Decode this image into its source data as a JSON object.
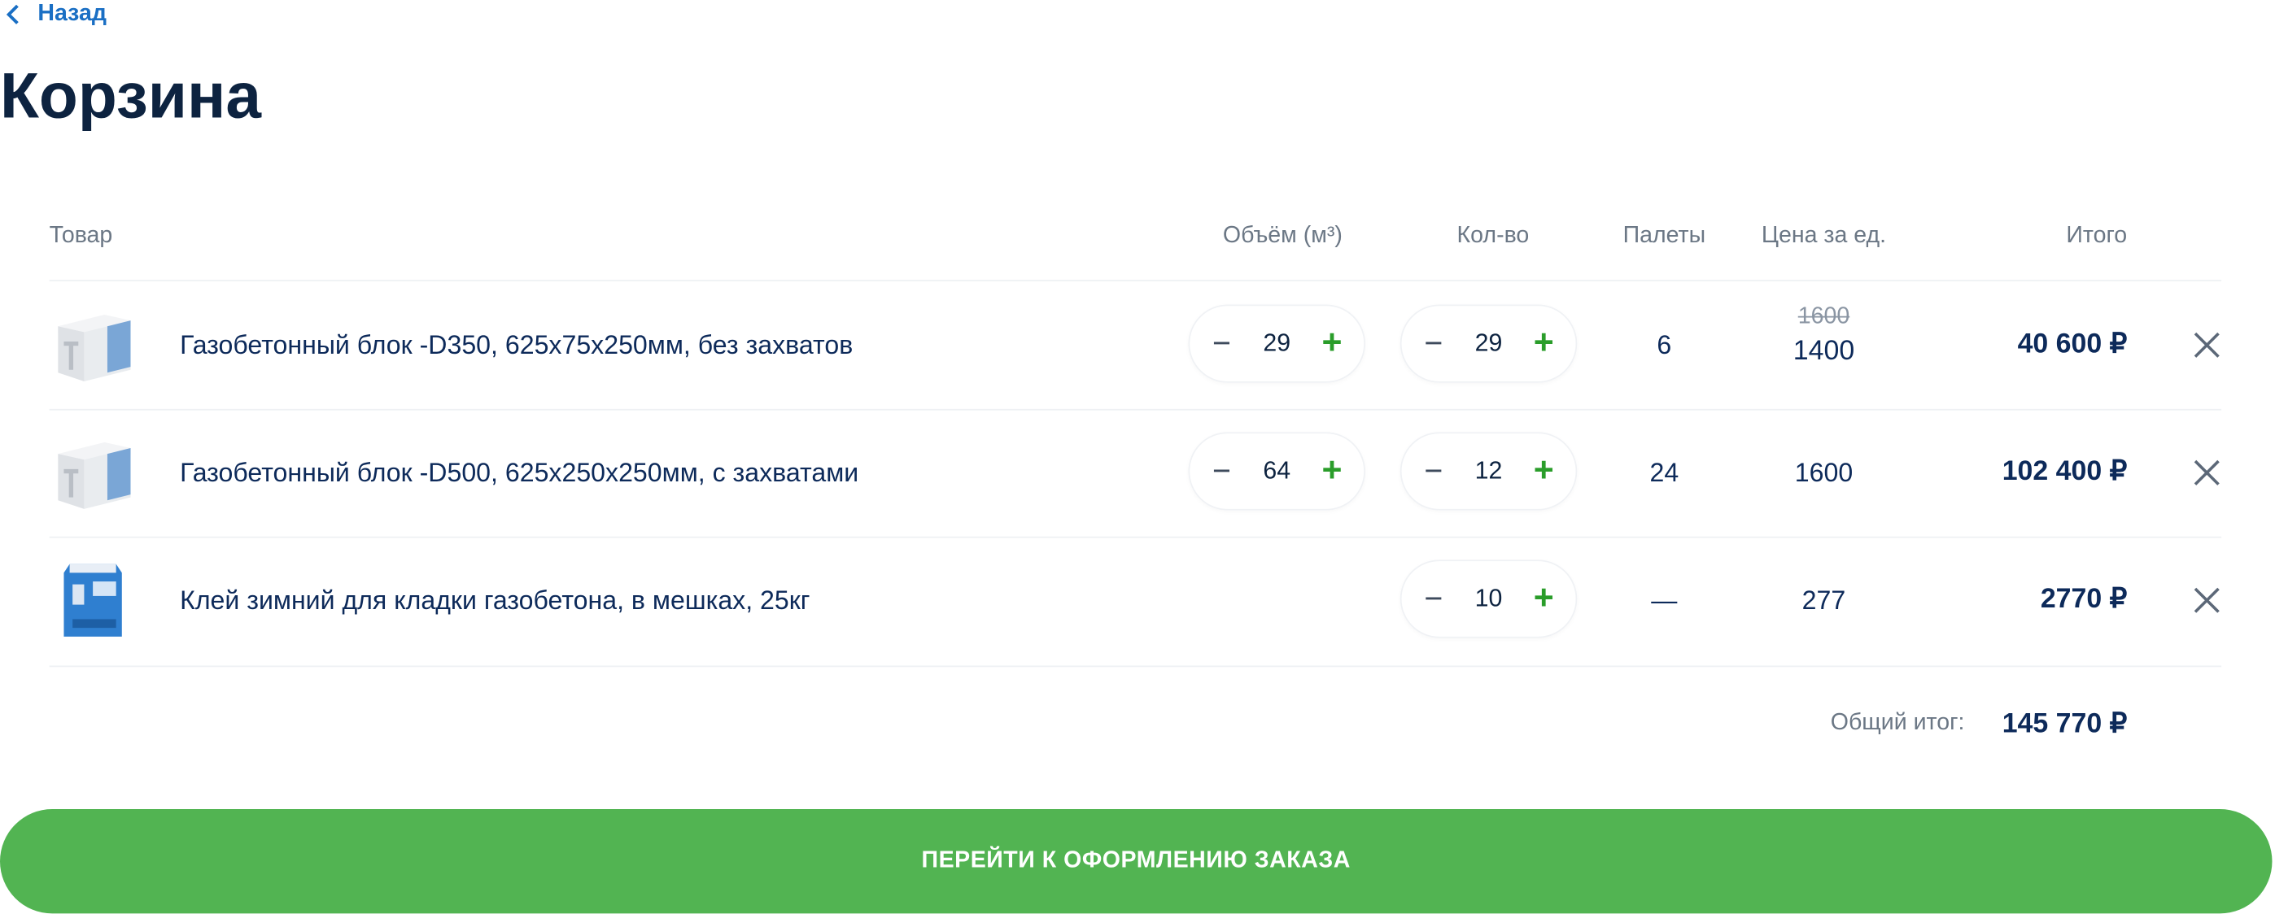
{
  "nav": {
    "back_label": "Назад"
  },
  "page_title": "Корзина",
  "columns": {
    "product": "Товар",
    "volume": "Объём (м³)",
    "quantity": "Кол-во",
    "pallets": "Палеты",
    "unit_price": "Цена за ед.",
    "total": "Итого"
  },
  "items": [
    {
      "name": "Газобетонный блок -D350, 625x75x250мм, без захватов",
      "image": "aerated-block",
      "volume": "29",
      "quantity": "29",
      "pallets": "6",
      "old_price": "1600",
      "price": "1400",
      "total": "40 600 ₽"
    },
    {
      "name": "Газобетонный блок -D500, 625x250x250мм, с захватами",
      "image": "aerated-block",
      "volume": "64",
      "quantity": "12",
      "pallets": "24",
      "price": "1600",
      "total": "102 400 ₽"
    },
    {
      "name": "Клей зимний для кладки газобетона, в мешках, 25кг",
      "image": "glue-bag",
      "quantity": "10",
      "pallets": "—",
      "price": "277",
      "total": "2770 ₽"
    }
  ],
  "stepper": {
    "minus": "−",
    "plus": "+"
  },
  "summary": {
    "label": "Общий итог:",
    "value": "145 770 ₽"
  },
  "checkout_button": "ПЕРЕЙТИ К ОФОРМЛЕНИЮ ЗАКАЗА",
  "colors": {
    "accent_green": "#52b452",
    "link_blue": "#1a6fc4",
    "text_dark": "#0d2340",
    "plus_green": "#2a9d2a"
  }
}
